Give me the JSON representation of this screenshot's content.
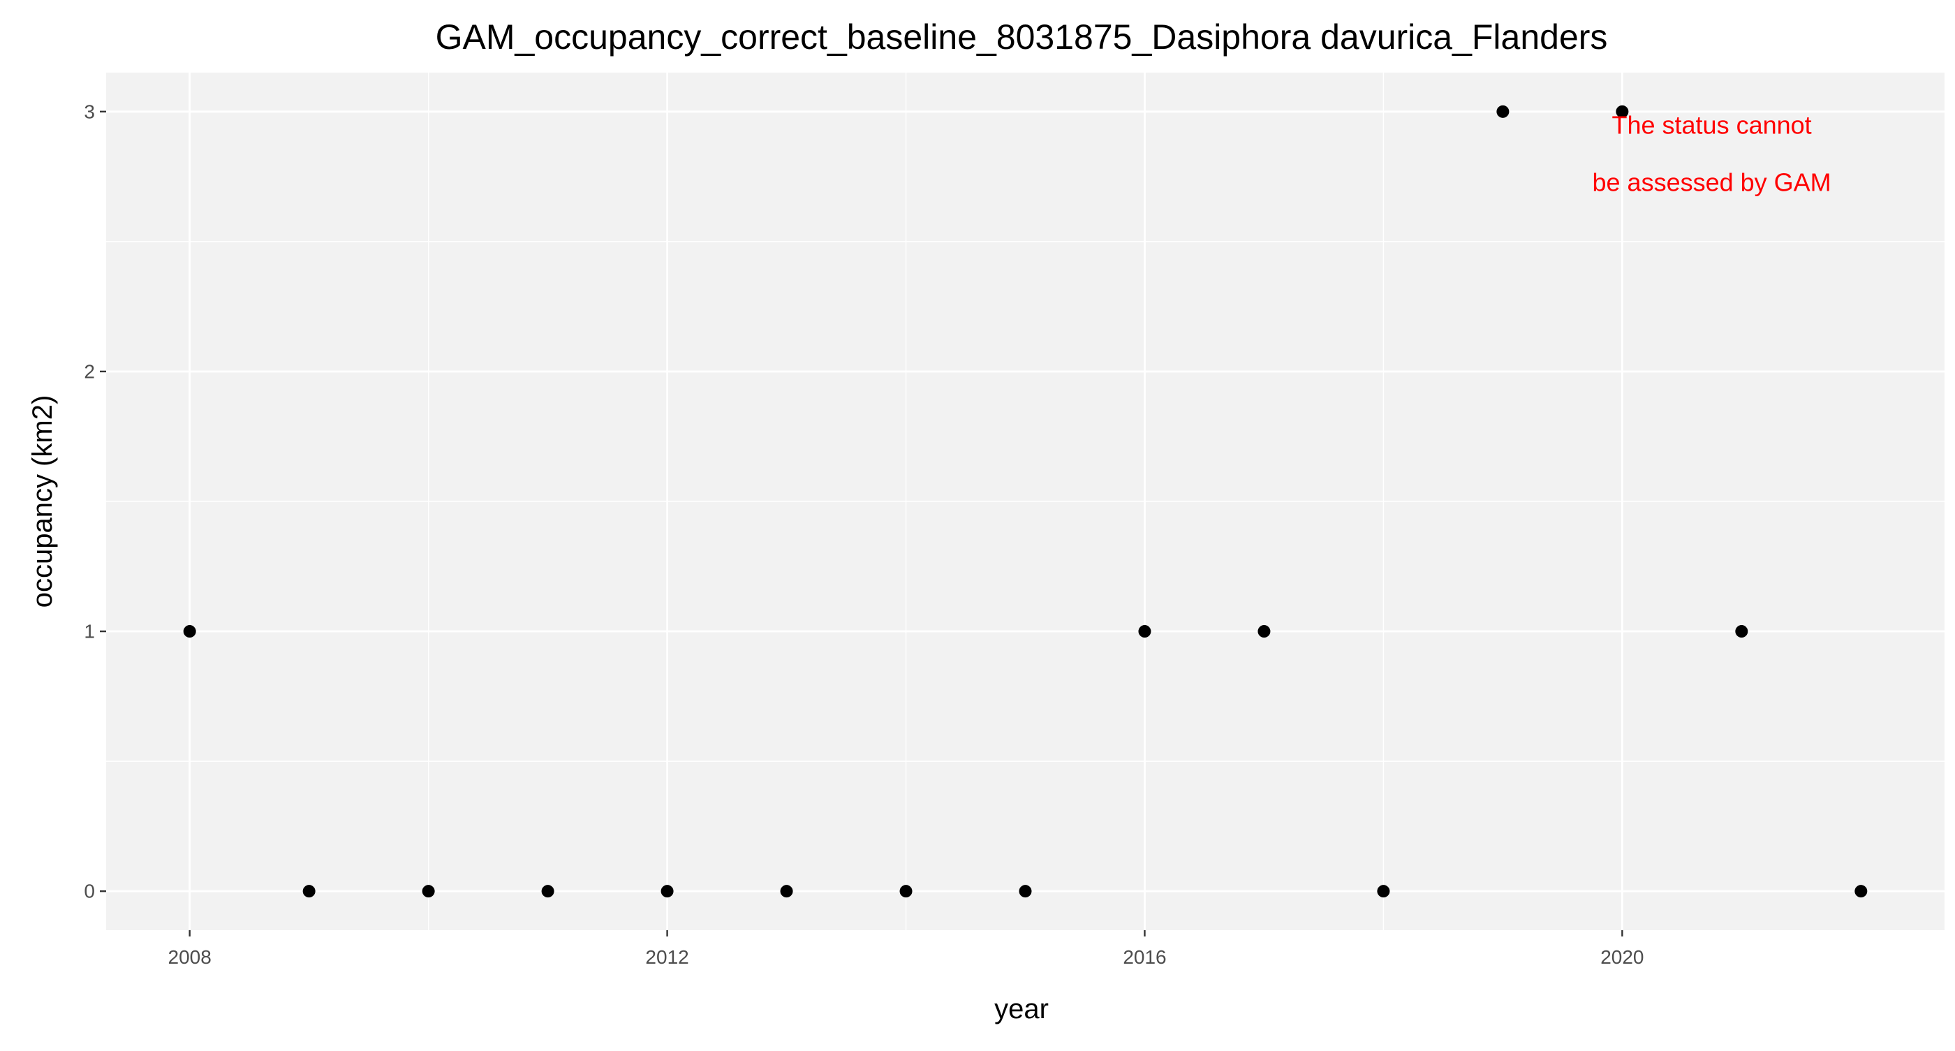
{
  "chart_data": {
    "type": "scatter",
    "title": "GAM_occupancy_correct_baseline_8031875_Dasiphora davurica_Flanders",
    "xlabel": "year",
    "ylabel": "occupancy (km2)",
    "x": [
      2008,
      2009,
      2010,
      2011,
      2012,
      2013,
      2014,
      2015,
      2016,
      2017,
      2018,
      2019,
      2020,
      2021,
      2022
    ],
    "y": [
      1,
      0,
      0,
      0,
      0,
      0,
      0,
      0,
      1,
      1,
      0,
      3,
      3,
      1,
      0
    ],
    "xlim": [
      2007.3,
      2022.7
    ],
    "ylim": [
      -0.15,
      3.15
    ],
    "x_ticks": [
      2008,
      2012,
      2016,
      2020
    ],
    "y_ticks": [
      0,
      1,
      2,
      3
    ],
    "grid": true,
    "annotation": {
      "lines": [
        "The status cannot",
        "be assessed by GAM"
      ],
      "x": 2020.75,
      "y_top": 2.95,
      "y_bottom": 2.73,
      "color": "#ff0000"
    },
    "colors": {
      "panel_background": "#f2f2f2",
      "grid": "#ffffff",
      "point": "#000000",
      "tick_text": "#4d4d4d"
    }
  }
}
